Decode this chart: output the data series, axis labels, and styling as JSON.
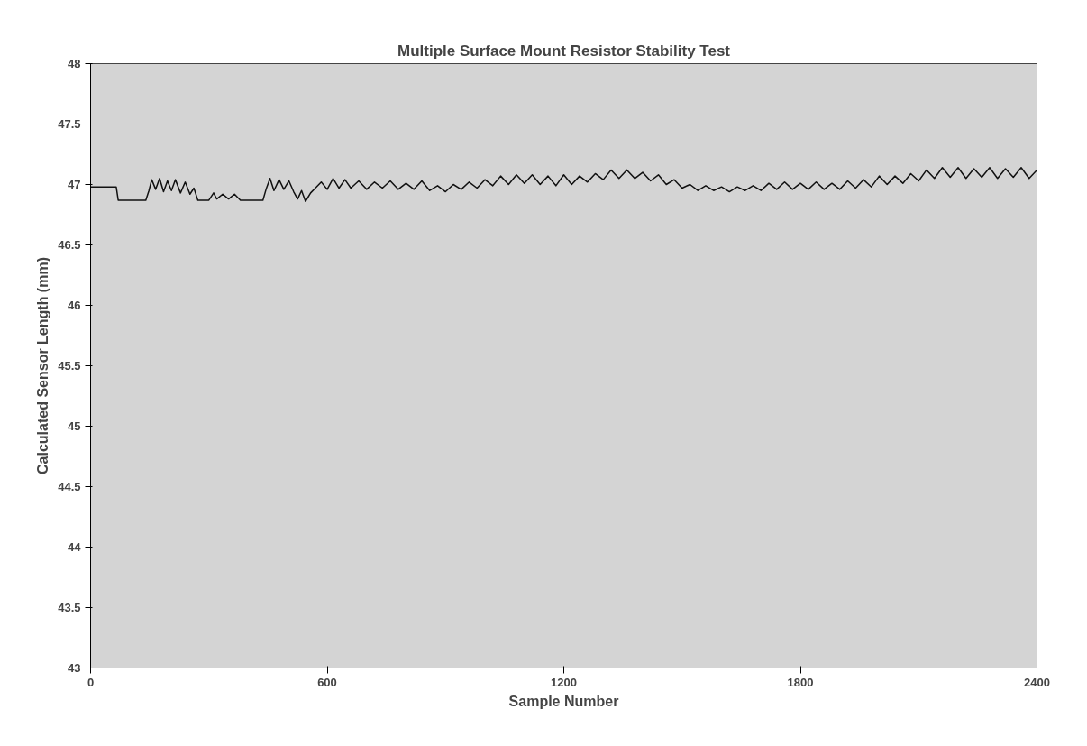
{
  "chart_data": {
    "type": "line",
    "title": "Multiple Surface Mount Resistor Stability Test",
    "xlabel": "Sample Number",
    "ylabel": "Calculated Sensor Length (mm)",
    "xlim": [
      0,
      2400
    ],
    "xticks": [
      0,
      600,
      1200,
      1800,
      2400
    ],
    "ylim": [
      43,
      48
    ],
    "yticks": [
      43,
      43.5,
      44,
      44.5,
      45,
      45.5,
      46,
      46.5,
      47,
      47.5,
      48
    ],
    "grid": false,
    "series": [
      {
        "color": "#111111",
        "x": [
          0,
          30,
          65,
          70,
          100,
          140,
          148,
          155,
          165,
          175,
          185,
          195,
          205,
          215,
          228,
          240,
          252,
          262,
          272,
          300,
          312,
          320,
          335,
          350,
          365,
          380,
          437,
          445,
          455,
          465,
          478,
          490,
          503,
          515,
          525,
          535,
          545,
          558,
          570,
          585,
          600,
          615,
          630,
          645,
          660,
          680,
          700,
          720,
          740,
          760,
          780,
          800,
          820,
          840,
          860,
          880,
          900,
          920,
          940,
          960,
          980,
          1000,
          1020,
          1040,
          1060,
          1080,
          1100,
          1120,
          1140,
          1160,
          1180,
          1200,
          1220,
          1240,
          1260,
          1280,
          1300,
          1320,
          1340,
          1360,
          1380,
          1400,
          1420,
          1440,
          1460,
          1480,
          1500,
          1520,
          1540,
          1560,
          1580,
          1600,
          1620,
          1640,
          1660,
          1680,
          1700,
          1720,
          1740,
          1760,
          1780,
          1800,
          1820,
          1840,
          1860,
          1880,
          1900,
          1920,
          1940,
          1960,
          1980,
          2000,
          2020,
          2040,
          2060,
          2080,
          2100,
          2120,
          2140,
          2160,
          2180,
          2200,
          2220,
          2240,
          2260,
          2280,
          2300,
          2320,
          2340,
          2360,
          2380,
          2400
        ],
        "values": [
          46.98,
          46.98,
          46.98,
          46.87,
          46.87,
          46.87,
          46.95,
          47.04,
          46.96,
          47.05,
          46.94,
          47.03,
          46.95,
          47.04,
          46.93,
          47.02,
          46.92,
          46.97,
          46.87,
          46.87,
          46.93,
          46.88,
          46.92,
          46.88,
          46.92,
          46.87,
          46.87,
          46.96,
          47.05,
          46.95,
          47.04,
          46.96,
          47.03,
          46.94,
          46.88,
          46.95,
          46.86,
          46.93,
          46.97,
          47.02,
          46.96,
          47.05,
          46.97,
          47.04,
          46.97,
          47.03,
          46.96,
          47.02,
          46.97,
          47.03,
          46.96,
          47.01,
          46.96,
          47.03,
          46.95,
          46.99,
          46.94,
          47.0,
          46.96,
          47.02,
          46.97,
          47.04,
          46.99,
          47.07,
          47.0,
          47.08,
          47.01,
          47.08,
          47.0,
          47.07,
          46.99,
          47.08,
          47.0,
          47.07,
          47.02,
          47.09,
          47.04,
          47.12,
          47.05,
          47.12,
          47.05,
          47.1,
          47.03,
          47.08,
          47.0,
          47.04,
          46.97,
          47.0,
          46.95,
          46.99,
          46.95,
          46.98,
          46.94,
          46.98,
          46.95,
          46.99,
          46.95,
          47.01,
          46.96,
          47.02,
          46.96,
          47.01,
          46.96,
          47.02,
          46.96,
          47.01,
          46.96,
          47.03,
          46.97,
          47.04,
          46.98,
          47.07,
          47.0,
          47.07,
          47.01,
          47.09,
          47.03,
          47.12,
          47.05,
          47.14,
          47.06,
          47.14,
          47.05,
          47.13,
          47.06,
          47.14,
          47.05,
          47.13,
          47.06,
          47.14,
          47.05,
          47.12
        ]
      }
    ]
  }
}
